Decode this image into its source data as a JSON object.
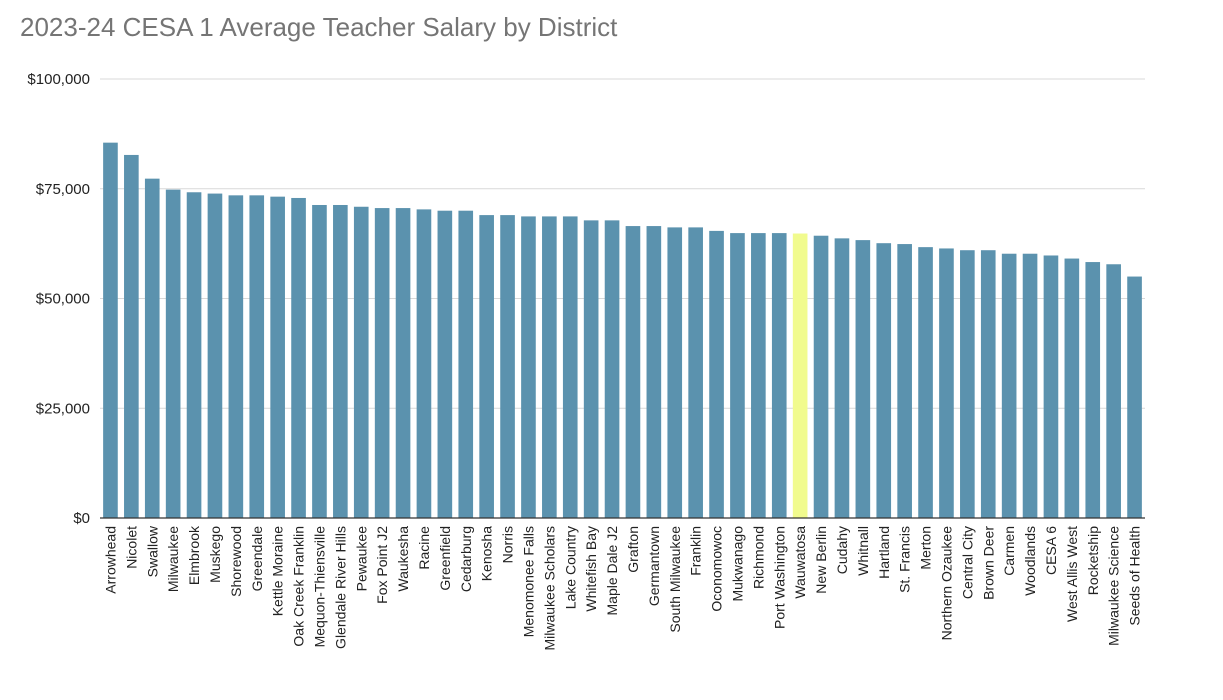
{
  "chart_data": {
    "type": "bar",
    "title": "2023-24 CESA 1 Average Teacher Salary by District",
    "xlabel": "",
    "ylabel": "",
    "ylim": [
      0,
      100000
    ],
    "yticks": [
      "$0",
      "$25,000",
      "$50,000",
      "$75,000",
      "$100,000"
    ],
    "ytick_values": [
      0,
      25000,
      50000,
      75000,
      100000
    ],
    "grid": true,
    "legend": "none",
    "colors": {
      "bar": "#5b92ae",
      "highlight": "#f1fb8e",
      "grid": "#d9d9d9",
      "axis": "#333333"
    },
    "highlight_category": "Wauwatosa",
    "categories": [
      "Arrowhead",
      "Nicolet",
      "Swallow",
      "Milwaukee",
      "Elmbrook",
      "Muskego",
      "Shorewood",
      "Greendale",
      "Kettle Moraine",
      "Oak Creek Franklin",
      "Mequon-Thiensville",
      "Glendale River Hills",
      "Pewaukee",
      "Fox Point J2",
      "Waukesha",
      "Racine",
      "Greenfield",
      "Cedarburg",
      "Kenosha",
      "Norris",
      "Menomonee Falls",
      "Milwaukee Scholars",
      "Lake Country",
      "Whitefish Bay",
      "Maple Dale J2",
      "Grafton",
      "Germantown",
      "South Milwaukee",
      "Franklin",
      "Oconomowoc",
      "Mukwanago",
      "Richmond",
      "Port Washington",
      "Wauwatosa",
      "New Berlin",
      "Cudahy",
      "Whitnall",
      "Hartland",
      "St. Francis",
      "Merton",
      "Northern Ozaukee",
      "Central City",
      "Brown Deer",
      "Carmen",
      "Woodlands",
      "CESA 6",
      "West Allis West",
      "Rocketship",
      "Milwaukee Science",
      "Seeds of Health"
    ],
    "values": [
      85500,
      82700,
      77300,
      74800,
      74200,
      73900,
      73500,
      73500,
      73200,
      72900,
      71300,
      71300,
      70900,
      70600,
      70600,
      70300,
      70000,
      70000,
      69000,
      69000,
      68700,
      68700,
      68700,
      67800,
      67800,
      66500,
      66500,
      66200,
      66200,
      65400,
      64900,
      64900,
      64900,
      64800,
      64300,
      63700,
      63300,
      62600,
      62400,
      61700,
      61400,
      61000,
      61000,
      60200,
      60200,
      59800,
      59100,
      58300,
      57800,
      55000
    ]
  }
}
